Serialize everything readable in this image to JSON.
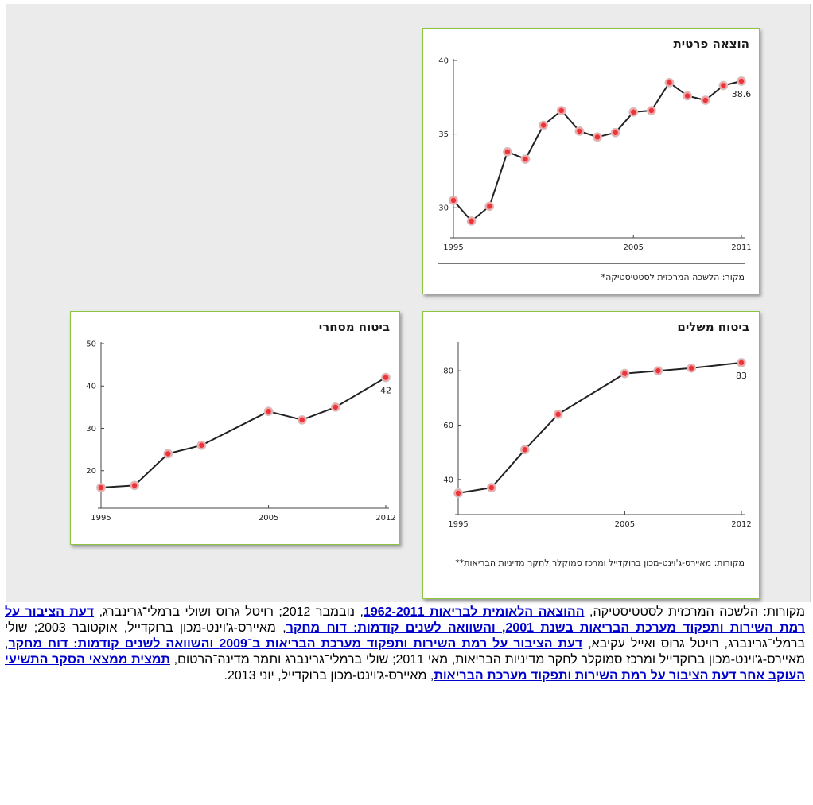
{
  "chart_data": [
    {
      "type": "line",
      "title": "הוצאה פרטית",
      "x": [
        1995,
        1996,
        1997,
        1998,
        1999,
        2000,
        2001,
        2002,
        2003,
        2004,
        2005,
        2006,
        2007,
        2008,
        2009,
        2010,
        2011
      ],
      "values": [
        30.5,
        29.1,
        30.1,
        33.8,
        33.3,
        35.6,
        36.6,
        35.2,
        34.8,
        35.1,
        36.5,
        36.6,
        38.5,
        37.6,
        37.3,
        38.3,
        38.6
      ],
      "xticks": [
        "1995",
        "2005",
        "2011"
      ],
      "yticks": [
        "30",
        "35",
        "40"
      ],
      "xlim": [
        1995,
        2011
      ],
      "ylim": [
        28.5,
        40
      ],
      "end_label": "38.6",
      "source": "מקור: הלשכה המרכזית לסטטיסטיקה*"
    },
    {
      "type": "line",
      "title": "ביטוח משלים",
      "x": [
        1995,
        1997,
        1999,
        2001,
        2003,
        2005,
        2007,
        2009,
        2012
      ],
      "values": [
        35,
        37,
        51,
        64,
        null,
        79,
        80,
        81,
        83
      ],
      "xticks": [
        "1995",
        "2005",
        "2012"
      ],
      "yticks": [
        "40",
        "60",
        "80"
      ],
      "xlim": [
        1995,
        2012
      ],
      "ylim": [
        30,
        90
      ],
      "end_label": "83",
      "source": "מקורות: מאיירס-ג'וינט-מכון ברוקדייל ומרכז סמוקלר לחקר מדיניות הבריאות**"
    },
    {
      "type": "line",
      "title": "ביטוח מסחרי",
      "x": [
        1995,
        1997,
        1999,
        2001,
        2003,
        2005,
        2007,
        2009,
        2012
      ],
      "values": [
        16,
        16.5,
        24,
        26,
        null,
        34,
        32,
        35,
        42
      ],
      "xticks": [
        "1995",
        "2005",
        "2012"
      ],
      "yticks": [
        "20",
        "30",
        "40",
        "50"
      ],
      "xlim": [
        1995,
        2012
      ],
      "ylim": [
        13,
        50
      ],
      "end_label": "42"
    }
  ],
  "footer": {
    "s1": "מקורות: הלשכה המרכזית לסטטיסטיקה, ",
    "l1": "ההוצאה הלאומית לבריאות 1962-2011",
    "s2": ", נובמבר 2012; רויטל גרוס ושולי ברמלי־גרינברג, ",
    "l2": "דעת הציבור על רמת השירות ותפקוד מערכת הבריאות בשנת 2001, והשוואה לשנים קודמות: דוח מחקר",
    "s3": ", מאיירס-ג'וינט-מכון ברוקדייל, אוקטובר 2003; שולי ברמלי־גרינברג, רויטל גרוס ואייל עקיבא, ",
    "l3": "דעת הציבור על רמת השירות ותפקוד מערכת הבריאות ב־2009 והשוואה לשנים קודמות: דוח מחקר",
    "s4": ", מאיירס-ג'וינט-מכון ברוקדייל ומרכז סמוקלר לחקר מדיניות הבריאות, מאי 2011; שולי ברמלי־גרינברג ותמר מדינה־הרטום, ",
    "l4": "תמצית ממצאי הסקר התשיעי העוקב אחר דעת הציבור על רמת השירות ותפקוד מערכת הבריאות",
    "s5": ", מאיירס-ג'וינט-מכון ברוקדייל, יוני 2013."
  },
  "colors": {
    "card_border": "#8cc63f",
    "marker_fill": "#e8343a",
    "marker_ring": "#f4a6a6",
    "line": "#222222",
    "link": "#0000cc"
  }
}
